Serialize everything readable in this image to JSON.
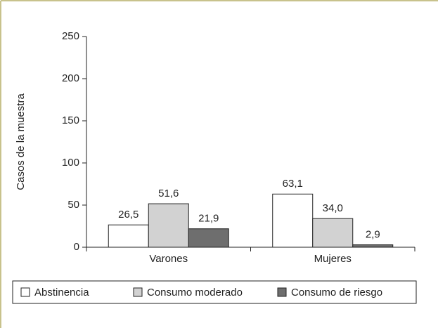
{
  "chart_data": {
    "type": "bar",
    "ylabel": "Casos de la muestra",
    "categories": [
      "Varones",
      "Mujeres"
    ],
    "series": [
      {
        "name": "Abstinencia",
        "color": "#ffffff",
        "values": [
          26.5,
          63.1
        ],
        "value_labels": [
          "26,5",
          "63,1"
        ]
      },
      {
        "name": "Consumo moderado",
        "color": "#d2d2d2",
        "values": [
          51.6,
          34.0
        ],
        "value_labels": [
          "51,6",
          "34,0"
        ]
      },
      {
        "name": "Consumo de riesgo",
        "color": "#6e6e6e",
        "values": [
          21.9,
          2.9
        ],
        "value_labels": [
          "21,9",
          "2,9"
        ]
      }
    ],
    "ylim": [
      0,
      250
    ],
    "yticks": [
      0,
      50,
      100,
      150,
      200,
      250
    ],
    "legend": "bottom"
  }
}
